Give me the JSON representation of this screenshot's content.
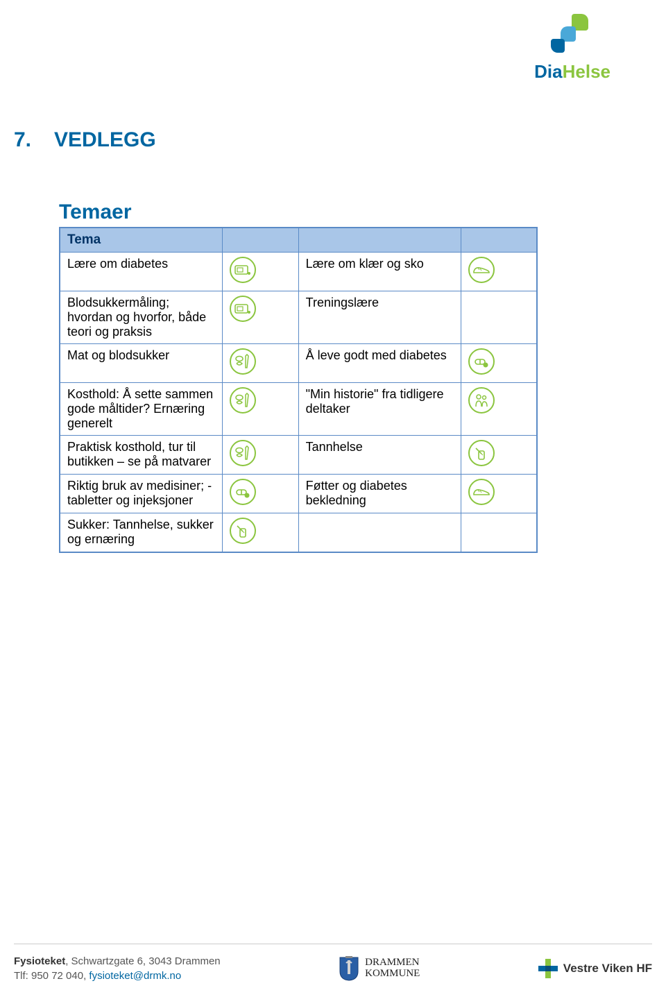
{
  "colors": {
    "heading": "#0066a1",
    "table_border": "#5a8ac6",
    "header_bg": "#a9c6e8",
    "header_text": "#003366",
    "icon_stroke": "#8bc53f",
    "link": "#0066a1",
    "footer_rule": "#cccccc"
  },
  "logo": {
    "part1": "Dia",
    "part2": "Helse"
  },
  "section": {
    "number": "7.",
    "title": "VEDLEGG"
  },
  "subtitle": "Temaer",
  "table": {
    "header": "Tema",
    "rows": [
      {
        "left": "Lære om diabetes",
        "left_icon": "meter",
        "right": "Lære om klær og sko",
        "right_icon": "shoe"
      },
      {
        "left": "Blodsukkermåling; hvordan og hvorfor, både teori og praksis",
        "left_icon": "meter",
        "right": "Treningslære",
        "right_icon": ""
      },
      {
        "left": "Mat og blodsukker",
        "left_icon": "food",
        "right": "Å leve godt med diabetes",
        "right_icon": "pill"
      },
      {
        "left": "Kosthold: Å sette sammen gode måltider? Ernæring generelt",
        "left_icon": "food",
        "right": "\"Min historie\" fra tidligere deltaker",
        "right_icon": "people"
      },
      {
        "left": "Praktisk kosthold, tur til butikken – se på matvarer",
        "left_icon": "food",
        "right": "Tannhelse",
        "right_icon": "tooth"
      },
      {
        "left": "Riktig bruk av medisiner; - tabletter og injeksjoner",
        "left_icon": "pill",
        "right": "Føtter og diabetes bekledning",
        "right_icon": "shoe"
      },
      {
        "left": "Sukker: Tannhelse, sukker og ernæring",
        "left_icon": "tooth",
        "right": "",
        "right_icon": ""
      }
    ]
  },
  "footer": {
    "org": "Fysioteket",
    "address": ", Schwartzgate 6, 3043 Drammen",
    "phone_label": "Tlf: ",
    "phone": "950 72 040, ",
    "email": "fysioteket@drmk.no",
    "mid_line1": "DRAMMEN",
    "mid_line2": "KOMMUNE",
    "right": "Vestre Viken HF"
  }
}
